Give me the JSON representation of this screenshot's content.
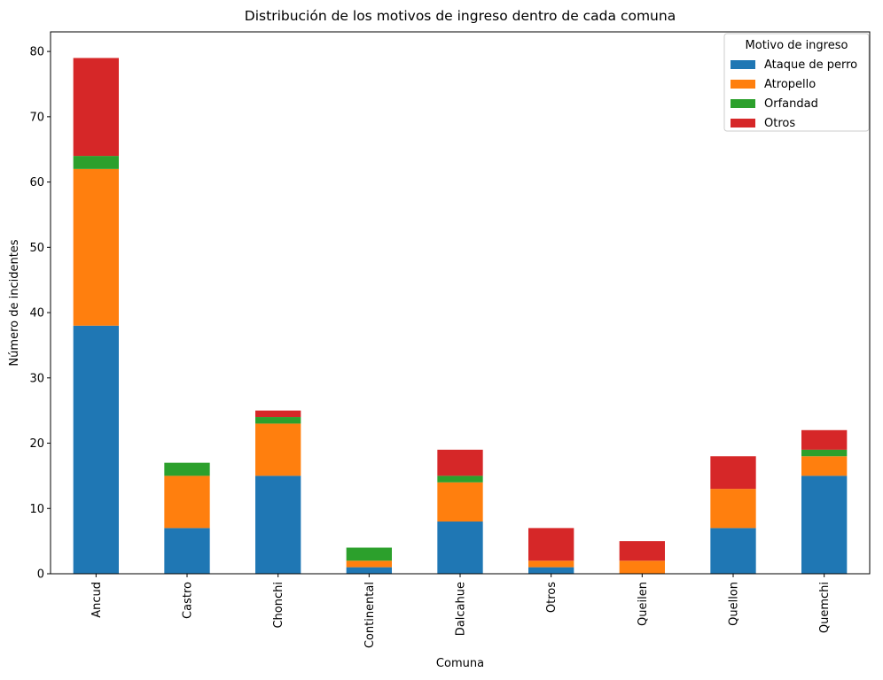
{
  "chart_data": {
    "type": "bar",
    "stacked": true,
    "title": "Distribución de los motivos de ingreso dentro de cada comuna",
    "xlabel": "Comuna",
    "ylabel": "Número de incidentes",
    "ylim": [
      0,
      83
    ],
    "yticks": [
      0,
      10,
      20,
      30,
      40,
      50,
      60,
      70,
      80
    ],
    "grid": false,
    "legend": {
      "title": "Motivo de ingreso",
      "placement": "top-right"
    },
    "categories": [
      "Ancud",
      "Castro",
      "Chonchi",
      "Continental",
      "Dalcahue",
      "Otros",
      "Queilen",
      "Quellon",
      "Quemchi"
    ],
    "series": [
      {
        "name": "Ataque de perro",
        "color": "#1f77b4",
        "values": [
          38,
          7,
          15,
          1,
          8,
          1,
          0,
          7,
          15
        ]
      },
      {
        "name": "Atropello",
        "color": "#ff7f0e",
        "values": [
          24,
          8,
          8,
          1,
          6,
          1,
          2,
          6,
          3
        ]
      },
      {
        "name": "Orfandad",
        "color": "#2ca02c",
        "values": [
          2,
          2,
          1,
          2,
          1,
          0,
          0,
          0,
          1
        ]
      },
      {
        "name": "Otros",
        "color": "#d62728",
        "values": [
          15,
          0,
          1,
          0,
          4,
          5,
          3,
          5,
          3
        ]
      }
    ]
  }
}
